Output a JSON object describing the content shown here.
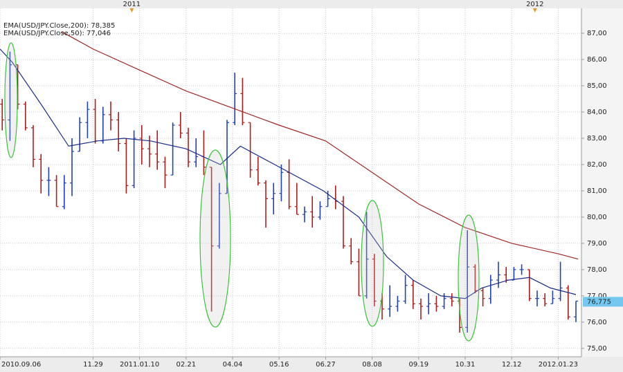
{
  "chart_data": {
    "type": "ohlc",
    "xlim": [
      "2010-09-06",
      "2012-02-13"
    ],
    "ylim": [
      74.68,
      87.95
    ],
    "yticks": [
      {
        "value": 75,
        "label": "75,00"
      },
      {
        "value": 76,
        "label": "76,00"
      },
      {
        "value": 77,
        "label": "77,00"
      },
      {
        "value": 78,
        "label": "78,00"
      },
      {
        "value": 79,
        "label": "79,00"
      },
      {
        "value": 80,
        "label": "80,00"
      },
      {
        "value": 81,
        "label": "81,00"
      },
      {
        "value": 82,
        "label": "82,00"
      },
      {
        "value": 83,
        "label": "83,00"
      },
      {
        "value": 84,
        "label": "84,00"
      },
      {
        "value": 85,
        "label": "85,00"
      },
      {
        "value": 86,
        "label": "86,00"
      },
      {
        "value": 87,
        "label": "87,00"
      }
    ],
    "xticks": [
      {
        "value": "2010-09-06",
        "label": "2010.09.06"
      },
      {
        "value": "2010-11-29",
        "label": "11.29"
      },
      {
        "value": "2011-01-10",
        "label": "2011.01.10"
      },
      {
        "value": "2011-02-21",
        "label": "02.21"
      },
      {
        "value": "2011-04-04",
        "label": "04.04"
      },
      {
        "value": "2011-05-16",
        "label": "05.16"
      },
      {
        "value": "2011-06-27",
        "label": "06.27"
      },
      {
        "value": "2011-08-08",
        "label": "08.08"
      },
      {
        "value": "2011-09-19",
        "label": "09.19"
      },
      {
        "value": "2011-10-31",
        "label": "10.31"
      },
      {
        "value": "2011-12-12",
        "label": "12.12"
      },
      {
        "value": "2012-01-23",
        "label": "2012.01.23"
      }
    ],
    "x2ticks": [
      {
        "value": "2011-01-03",
        "label": "2011"
      },
      {
        "value": "2012-01-02",
        "label": "2012"
      }
    ],
    "grid": true,
    "bars": {
      "up_color": "#1f3fbf",
      "down_color": "#b01c1c",
      "x": [
        "2010-09-06",
        "2010-09-13",
        "2010-09-20",
        "2010-09-27",
        "2010-10-04",
        "2010-10-11",
        "2010-10-18",
        "2010-10-25",
        "2010-11-01",
        "2010-11-08",
        "2010-11-15",
        "2010-11-22",
        "2010-11-29",
        "2010-12-06",
        "2010-12-13",
        "2010-12-20",
        "2010-12-27",
        "2011-01-03",
        "2011-01-10",
        "2011-01-17",
        "2011-01-24",
        "2011-01-31",
        "2011-02-07",
        "2011-02-14",
        "2011-02-21",
        "2011-02-28",
        "2011-03-07",
        "2011-03-14",
        "2011-03-21",
        "2011-03-28",
        "2011-04-04",
        "2011-04-11",
        "2011-04-18",
        "2011-04-25",
        "2011-05-02",
        "2011-05-09",
        "2011-05-16",
        "2011-05-23",
        "2011-05-30",
        "2011-06-06",
        "2011-06-13",
        "2011-06-20",
        "2011-06-27",
        "2011-07-04",
        "2011-07-11",
        "2011-07-18",
        "2011-07-25",
        "2011-08-01",
        "2011-08-08",
        "2011-08-15",
        "2011-08-22",
        "2011-08-29",
        "2011-09-05",
        "2011-09-12",
        "2011-09-19",
        "2011-09-26",
        "2011-10-03",
        "2011-10-10",
        "2011-10-17",
        "2011-10-24",
        "2011-10-31",
        "2011-11-07",
        "2011-11-14",
        "2011-11-21",
        "2011-11-28",
        "2011-12-05",
        "2011-12-12",
        "2011-12-19",
        "2011-12-26",
        "2012-01-02",
        "2012-01-09",
        "2012-01-16",
        "2012-01-23",
        "2012-01-30",
        "2012-02-06"
      ],
      "open": [
        84.3,
        83.7,
        85.8,
        84.3,
        83.4,
        82.2,
        81.4,
        81.4,
        80.4,
        81.3,
        82.5,
        83.6,
        84.1,
        82.9,
        83.9,
        83.7,
        82.8,
        81.2,
        83.0,
        82.6,
        82.4,
        82.1,
        81.6,
        83.5,
        83.2,
        82.1,
        82.3,
        81.9,
        78.9,
        80.9,
        83.6,
        84.7,
        83.6,
        81.8,
        81.3,
        80.7,
        80.9,
        81.7,
        80.4,
        80.1,
        80.2,
        80.0,
        80.4,
        80.7,
        80.6,
        78.9,
        78.3,
        77.0,
        78.4,
        76.8,
        76.5,
        76.6,
        76.8,
        77.4,
        76.7,
        76.6,
        76.7,
        76.6,
        76.9,
        76.8,
        75.8,
        78.1,
        77.2,
        76.9,
        77.6,
        77.8,
        77.6,
        78.0,
        78.0,
        76.9,
        76.9,
        76.7,
        76.9,
        77.3,
        76.2
      ],
      "high": [
        84.5,
        86.3,
        85.8,
        84.4,
        83.5,
        82.4,
        81.9,
        81.6,
        81.6,
        83.0,
        83.8,
        84.4,
        84.5,
        84.2,
        84.4,
        84.0,
        83.0,
        83.3,
        83.5,
        83.1,
        83.3,
        82.3,
        83.6,
        84.0,
        83.4,
        83.0,
        83.3,
        81.9,
        81.3,
        83.7,
        85.5,
        85.3,
        83.6,
        82.3,
        81.4,
        81.3,
        82.0,
        82.2,
        81.3,
        80.4,
        80.8,
        80.6,
        81.0,
        81.2,
        80.8,
        79.2,
        78.8,
        80.2,
        78.6,
        77.1,
        77.4,
        77.0,
        77.8,
        77.6,
        76.9,
        77.1,
        77.0,
        77.1,
        77.1,
        76.9,
        79.5,
        78.2,
        77.3,
        77.8,
        78.3,
        78.1,
        78.1,
        78.2,
        78.0,
        77.2,
        77.1,
        77.2,
        78.3,
        77.4,
        76.8
      ],
      "low": [
        83.3,
        82.9,
        84.1,
        83.3,
        81.9,
        80.9,
        80.8,
        80.4,
        80.3,
        80.8,
        82.5,
        83.0,
        82.8,
        82.8,
        83.3,
        82.5,
        80.9,
        81.1,
        82.0,
        81.9,
        81.8,
        81.1,
        81.6,
        83.0,
        81.9,
        81.9,
        81.6,
        76.4,
        78.8,
        80.9,
        83.5,
        83.5,
        81.5,
        81.2,
        79.6,
        80.1,
        80.6,
        80.3,
        80.1,
        79.8,
        79.6,
        79.9,
        80.4,
        80.3,
        78.8,
        78.2,
        77.0,
        76.9,
        76.6,
        76.1,
        76.2,
        76.4,
        76.7,
        76.5,
        76.1,
        76.3,
        76.4,
        76.5,
        76.6,
        75.6,
        75.6,
        77.1,
        76.6,
        76.7,
        77.3,
        77.5,
        77.6,
        77.8,
        76.8,
        76.6,
        76.6,
        76.7,
        76.8,
        76.1,
        76.0
      ],
      "close": [
        83.7,
        85.8,
        84.3,
        83.4,
        82.2,
        81.4,
        81.4,
        80.4,
        81.3,
        82.5,
        83.6,
        84.1,
        82.9,
        83.9,
        83.7,
        82.8,
        81.2,
        83.0,
        82.6,
        82.4,
        82.1,
        81.6,
        83.5,
        83.2,
        82.1,
        82.3,
        81.9,
        78.9,
        80.9,
        83.6,
        84.7,
        83.6,
        81.8,
        81.3,
        80.7,
        80.9,
        81.7,
        80.4,
        80.1,
        80.2,
        80.0,
        80.4,
        80.7,
        80.6,
        78.9,
        78.3,
        77.0,
        78.4,
        76.8,
        76.5,
        76.6,
        76.8,
        77.4,
        76.7,
        76.6,
        76.7,
        76.6,
        76.9,
        76.8,
        75.8,
        78.1,
        77.2,
        76.9,
        77.6,
        77.8,
        77.6,
        78.0,
        78.0,
        76.9,
        76.9,
        76.7,
        76.9,
        77.3,
        76.2,
        76.8
      ]
    },
    "last_label": {
      "value": 76.775,
      "label": "76,775"
    },
    "series": [
      {
        "name": "EMA(USD/JPY.Close,200): 78,385",
        "color": "#a02424",
        "x": [
          "2010-11-01",
          "2010-11-29",
          "2011-01-10",
          "2011-02-21",
          "2011-04-04",
          "2011-05-16",
          "2011-06-27",
          "2011-08-08",
          "2011-09-19",
          "2011-10-31",
          "2011-12-12",
          "2012-01-23",
          "2012-02-10"
        ],
        "values": [
          87.05,
          86.4,
          85.6,
          84.8,
          84.15,
          83.5,
          82.9,
          81.7,
          80.5,
          79.6,
          79.0,
          78.6,
          78.4
        ]
      },
      {
        "name": "EMA(USD/JPY.Close,50): 77,046",
        "color": "#1a2a8a",
        "x": [
          "2010-09-06",
          "2010-09-17",
          "2010-10-13",
          "2010-11-07",
          "2010-12-03",
          "2010-12-27",
          "2011-01-20",
          "2011-02-21",
          "2011-03-24",
          "2011-04-11",
          "2011-05-12",
          "2011-06-25",
          "2011-07-27",
          "2011-08-21",
          "2011-09-14",
          "2011-10-09",
          "2011-10-31",
          "2011-11-15",
          "2011-12-09",
          "2011-12-28",
          "2012-01-16",
          "2012-02-08"
        ],
        "values": [
          86.4,
          85.9,
          84.3,
          82.7,
          82.9,
          83.0,
          82.9,
          82.6,
          82.0,
          82.7,
          82.0,
          81.0,
          80.0,
          78.5,
          77.6,
          77.0,
          76.9,
          77.3,
          77.6,
          77.7,
          77.3,
          77.05
        ]
      }
    ]
  }
}
